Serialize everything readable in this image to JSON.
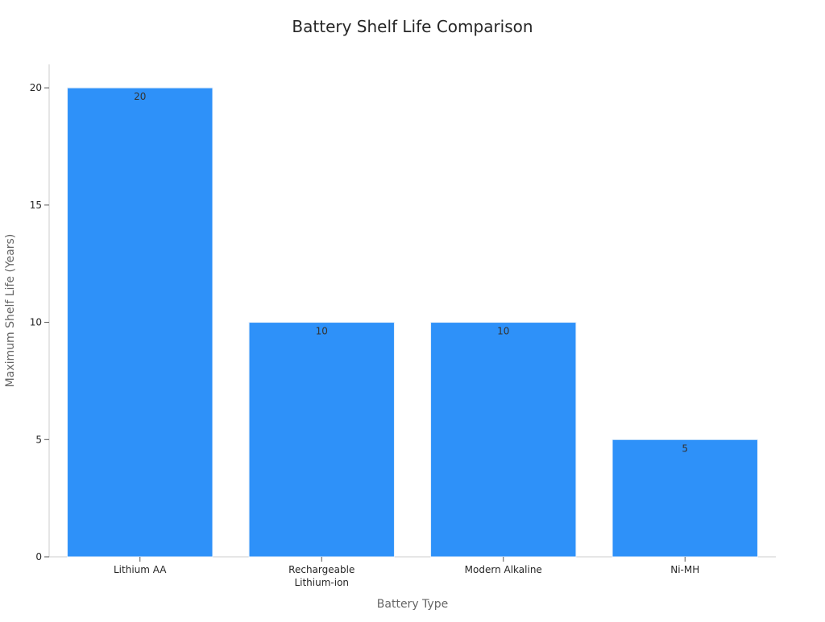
{
  "chart_data": {
    "type": "bar",
    "title": "Battery Shelf Life Comparison",
    "xlabel": "Battery Type",
    "ylabel": "Maximum Shelf Life (Years)",
    "categories": [
      [
        "Lithium AA"
      ],
      [
        "Rechargeable",
        "Lithium-ion"
      ],
      [
        "Modern Alkaline"
      ],
      [
        "Ni-MH"
      ]
    ],
    "values": [
      20,
      10,
      10,
      5
    ],
    "data_labels": [
      "20",
      "10",
      "10",
      "5"
    ],
    "ylim": [
      0,
      21
    ],
    "yticks": [
      0,
      5,
      10,
      15,
      20
    ],
    "grid": false,
    "bar_color": "#2e91f9",
    "bar_edge_color": "#e6f0fb"
  }
}
